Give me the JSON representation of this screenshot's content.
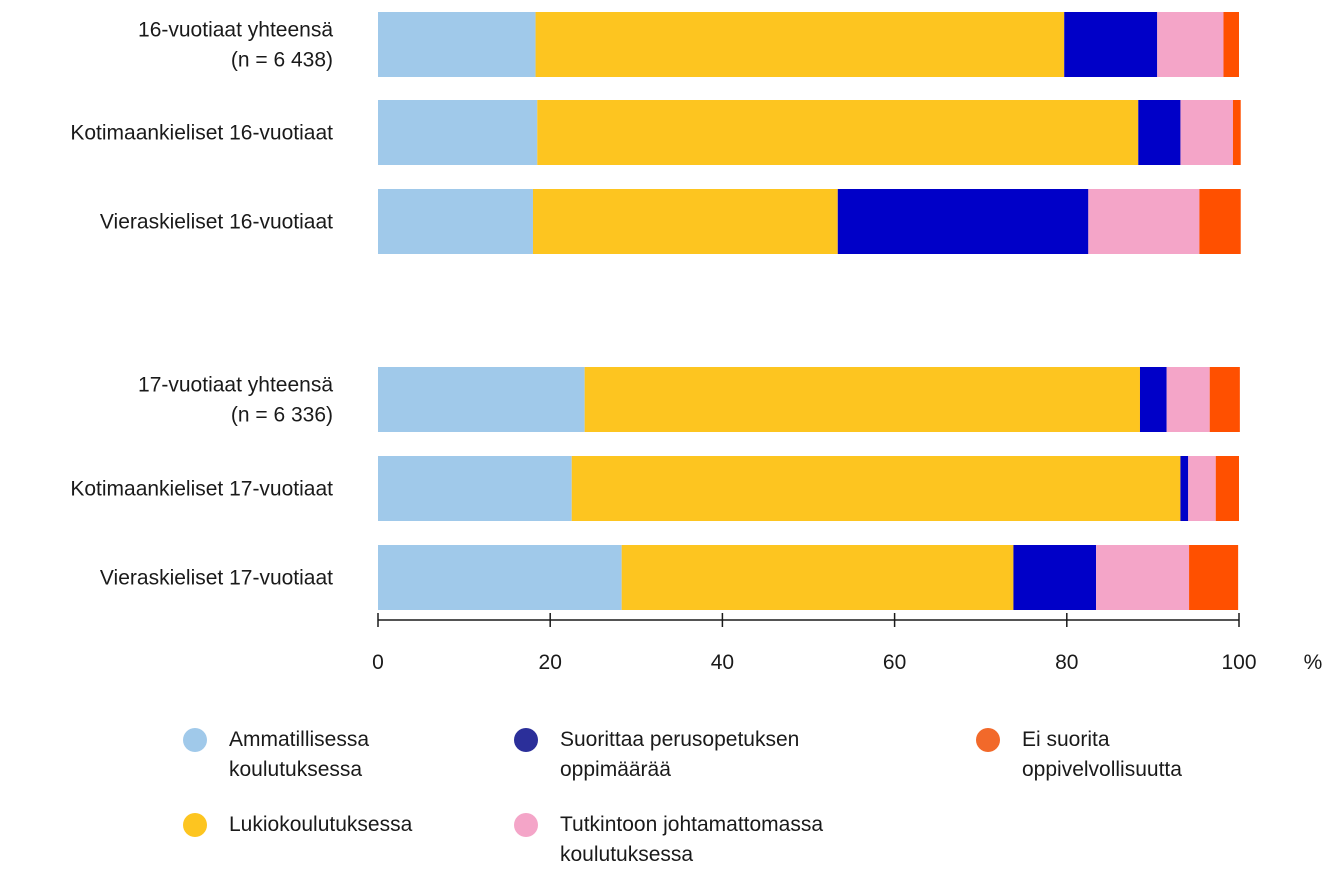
{
  "chart_data": {
    "type": "bar",
    "orientation": "horizontal",
    "stacked": true,
    "categories": [
      "16-vuotiaat yhteensä\n(n = 6 438)",
      "Kotimaankieliset 16-vuotiaat",
      "Vieraskieliset 16-vuotiaat",
      "17-vuotiaat yhteensä\n(n = 6 336)",
      "Kotimaankieliset 17-vuotiaat",
      "Vieraskieliset 17-vuotiaat"
    ],
    "series": [
      {
        "name": "Ammatillisessa koulutuksessa",
        "color": "#a0c9ea",
        "values": [
          18.3,
          18.5,
          18.0,
          24.0,
          22.5,
          28.3
        ]
      },
      {
        "name": "Lukiokoulutuksessa",
        "color": "#fdc520",
        "values": [
          61.4,
          69.8,
          35.4,
          64.5,
          70.7,
          45.5
        ]
      },
      {
        "name": "Suorittaa perusopetuksen oppimäärää",
        "color": "#0000c8",
        "values": [
          10.8,
          4.9,
          29.1,
          3.1,
          0.9,
          9.6
        ]
      },
      {
        "name": "Tutkintoon johtamattomassa koulutuksessa",
        "color": "#f4a5c8",
        "values": [
          7.7,
          6.1,
          12.9,
          5.0,
          3.2,
          10.8
        ]
      },
      {
        "name": "Ei suorita oppivelvollisuutta",
        "color": "#ff5000",
        "values": [
          1.8,
          0.9,
          4.8,
          3.5,
          2.7,
          5.7
        ]
      }
    ],
    "xlim": [
      0,
      100
    ],
    "xticks": [
      "0",
      "20",
      "40",
      "60",
      "80",
      "100"
    ],
    "xunit": "%",
    "legend_placement": "bottom"
  },
  "legend": [
    {
      "label": "Ammatillisessa\nkoulutuksessa",
      "color": "#a0c9ea"
    },
    {
      "label": "Lukiokoulutuksessa",
      "color": "#fdc520"
    },
    {
      "label": "Suorittaa perusopetuksen\noppimäärää",
      "color": "#2b2f9a"
    },
    {
      "label": "Tutkintoon johtamattomassa\nkoulutuksessa",
      "color": "#f4a5c8"
    },
    {
      "label": "Ei suorita\noppivelvollisuutta",
      "color": "#f2692a"
    }
  ]
}
